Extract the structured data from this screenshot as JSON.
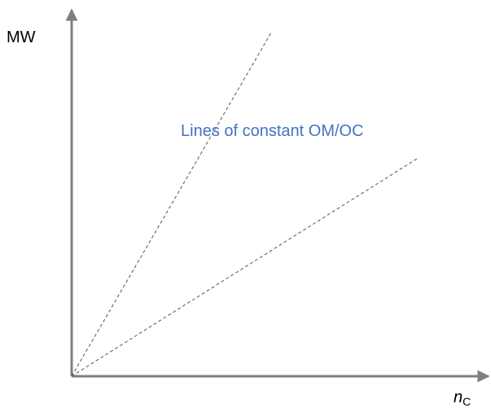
{
  "axes": {
    "y_label": "MW",
    "x_label": {
      "main": "n",
      "subscript": "C"
    }
  },
  "annotation": "Lines of constant OM/OC"
}
